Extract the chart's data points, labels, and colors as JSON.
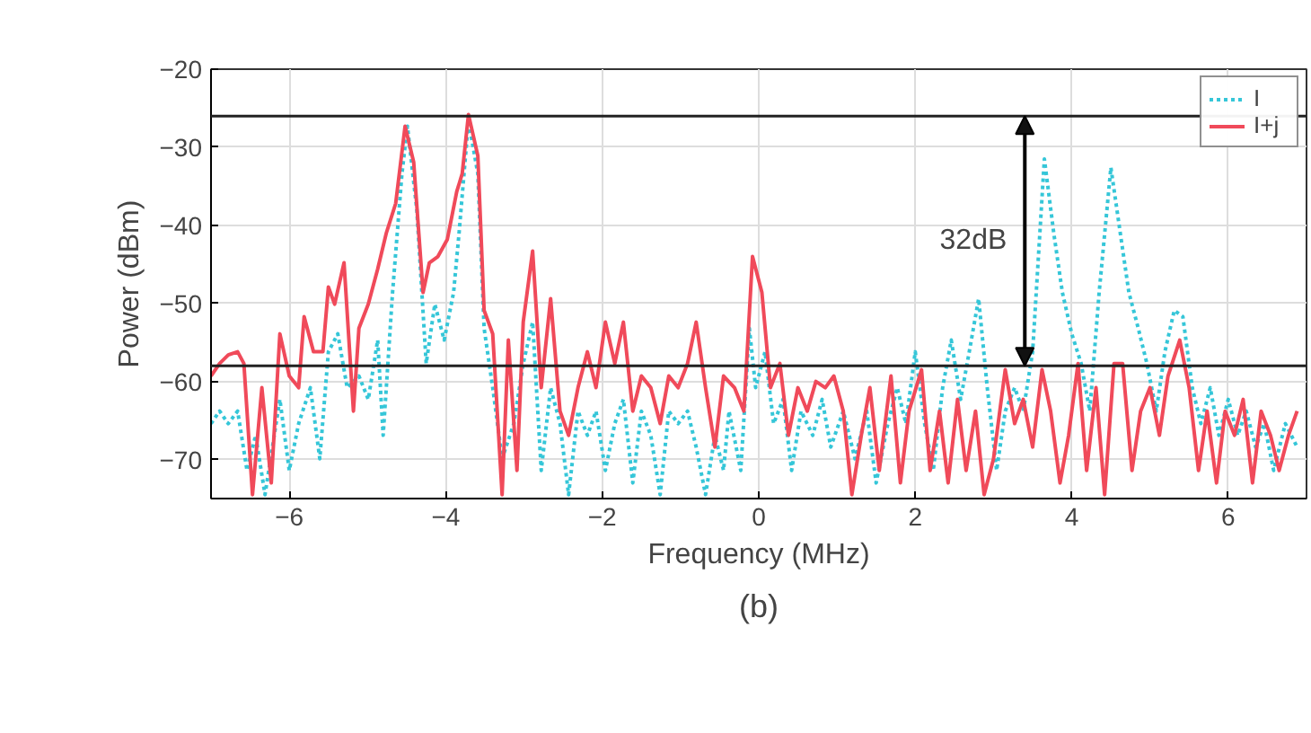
{
  "chart_data": {
    "type": "line",
    "xlabel": "Frequency (MHz)",
    "ylabel": "Power (dBm)",
    "xlim": [
      -7,
      7
    ],
    "ylim": [
      -75,
      -20
    ],
    "xticks": [
      -6,
      -4,
      -2,
      0,
      2,
      4,
      6
    ],
    "yticks": [
      -70,
      -60,
      -50,
      -40,
      -30,
      -20
    ],
    "grid": true,
    "legend": "top right",
    "marker": "none",
    "annotations": [
      "32dB",
      "(b)"
    ],
    "ref_lines": [
      {
        "axis": "y",
        "value": -26
      },
      {
        "axis": "y",
        "value": -58
      }
    ],
    "series": [
      {
        "name": "I",
        "color": "#35c6d8",
        "line_style": "dotted",
        "x": [
          -7.0,
          -6.89,
          -6.78,
          -6.66,
          -6.54,
          -6.43,
          -6.31,
          -6.12,
          -6.0,
          -5.88,
          -5.73,
          -5.61,
          -5.5,
          -5.38,
          -5.26,
          -5.11,
          -4.99,
          -4.87,
          -4.8,
          -4.68,
          -4.56,
          -4.49,
          -4.37,
          -4.25,
          -4.14,
          -4.02,
          -3.9,
          -3.83,
          -3.71,
          -3.59,
          -3.51,
          -3.4,
          -3.28,
          -3.13,
          -3.01,
          -2.89,
          -2.78,
          -2.66,
          -2.54,
          -2.43,
          -2.31,
          -2.19,
          -2.08,
          -1.96,
          -1.84,
          -1.73,
          -1.61,
          -1.5,
          -1.38,
          -1.26,
          -1.15,
          -1.03,
          -0.91,
          -0.8,
          -0.68,
          -0.56,
          -0.45,
          -0.38,
          -0.23,
          -0.12,
          -0.04,
          0.08,
          0.19,
          0.31,
          0.42,
          0.54,
          0.69,
          0.81,
          0.92,
          1.08,
          1.23,
          1.38,
          1.5,
          1.65,
          1.77,
          1.88,
          2.0,
          2.12,
          2.23,
          2.35,
          2.46,
          2.58,
          2.69,
          2.81,
          2.92,
          3.04,
          3.15,
          3.27,
          3.38,
          3.5,
          3.65,
          3.77,
          3.88,
          4.0,
          4.12,
          4.23,
          4.35,
          4.5,
          4.62,
          4.73,
          4.85,
          4.96,
          5.08,
          5.19,
          5.31,
          5.42,
          5.54,
          5.65,
          5.77,
          5.88,
          6.0,
          6.12,
          6.23,
          6.35,
          6.46,
          6.58,
          6.73,
          6.88
        ],
        "values": [
          -65.4,
          -63.8,
          -65.4,
          -63.8,
          -71.4,
          -66.9,
          -74.5,
          -62.3,
          -71.4,
          -65.4,
          -60.8,
          -69.9,
          -56.2,
          -53.9,
          -60.8,
          -59.3,
          -62.3,
          -54.7,
          -66.9,
          -48.6,
          -33.4,
          -27.3,
          -38,
          -57.7,
          -50.1,
          -54.7,
          -48.6,
          -41,
          -26.6,
          -33.4,
          -53.2,
          -60.8,
          -69.9,
          -65.4,
          -57.7,
          -52.4,
          -71.4,
          -60.8,
          -65.4,
          -74.5,
          -63.8,
          -66.9,
          -63.8,
          -71.4,
          -65.4,
          -62.3,
          -73,
          -63.8,
          -66.9,
          -74.5,
          -63.8,
          -65.4,
          -63.8,
          -68.4,
          -74.5,
          -66.9,
          -71.4,
          -63.8,
          -71.4,
          -53.2,
          -60.8,
          -56.2,
          -65.4,
          -62.3,
          -71.4,
          -63.8,
          -66.9,
          -62.3,
          -68.4,
          -63.8,
          -69.9,
          -63.8,
          -73,
          -65.4,
          -60.8,
          -65.4,
          -56.2,
          -65.4,
          -71.4,
          -60.8,
          -54.7,
          -62.3,
          -56.2,
          -49.4,
          -60.8,
          -71.4,
          -63.8,
          -60.8,
          -63.8,
          -56.2,
          -31.5,
          -41,
          -48.6,
          -53.9,
          -57.7,
          -63.8,
          -48.6,
          -32.6,
          -41,
          -48.6,
          -53.2,
          -57.7,
          -63.8,
          -56.2,
          -50.9,
          -51.7,
          -60.8,
          -65.4,
          -60.8,
          -66.9,
          -62.3,
          -66.9,
          -63.8,
          -68.4,
          -65.4,
          -71.4,
          -65.4,
          -68.4
        ]
      },
      {
        "name": "I+j",
        "color": "#f04a5a",
        "line_style": "solid",
        "x": [
          -7.0,
          -6.89,
          -6.78,
          -6.66,
          -6.58,
          -6.47,
          -6.35,
          -6.23,
          -6.12,
          -6.0,
          -5.88,
          -5.81,
          -5.69,
          -5.57,
          -5.5,
          -5.42,
          -5.3,
          -5.18,
          -5.11,
          -4.99,
          -4.87,
          -4.76,
          -4.64,
          -4.52,
          -4.41,
          -4.29,
          -4.21,
          -4.1,
          -3.98,
          -3.86,
          -3.79,
          -3.71,
          -3.59,
          -3.51,
          -3.4,
          -3.28,
          -3.2,
          -3.09,
          -3.01,
          -2.89,
          -2.78,
          -2.66,
          -2.54,
          -2.43,
          -2.31,
          -2.19,
          -2.08,
          -1.96,
          -1.84,
          -1.73,
          -1.61,
          -1.5,
          -1.38,
          -1.26,
          -1.15,
          -1.03,
          -0.91,
          -0.8,
          -0.68,
          -0.56,
          -0.45,
          -0.31,
          -0.19,
          -0.08,
          0.04,
          0.15,
          0.27,
          0.38,
          0.5,
          0.62,
          0.73,
          0.85,
          0.96,
          1.08,
          1.19,
          1.31,
          1.42,
          1.54,
          1.69,
          1.81,
          1.92,
          2.08,
          2.19,
          2.31,
          2.42,
          2.54,
          2.65,
          2.77,
          2.88,
          3.0,
          3.15,
          3.27,
          3.38,
          3.5,
          3.62,
          3.73,
          3.85,
          3.96,
          4.08,
          4.19,
          4.31,
          4.42,
          4.54,
          4.65,
          4.77,
          4.88,
          5.0,
          5.12,
          5.23,
          5.38,
          5.5,
          5.62,
          5.73,
          5.85,
          5.96,
          6.08,
          6.19,
          6.31,
          6.42,
          6.54,
          6.65,
          6.77,
          6.88
        ],
        "values": [
          -59.3,
          -57.7,
          -56.6,
          -56.2,
          -57.7,
          -74.5,
          -60.8,
          -73,
          -53.9,
          -59.3,
          -60.8,
          -51.7,
          -56.2,
          -56.2,
          -47.9,
          -50.1,
          -44.8,
          -63.8,
          -53.2,
          -50.1,
          -45.6,
          -41,
          -37.2,
          -27.3,
          -31.9,
          -48.6,
          -44.8,
          -44,
          -41.8,
          -35.7,
          -33.4,
          -25.8,
          -31.1,
          -50.9,
          -53.9,
          -74.5,
          -54.7,
          -71.4,
          -52.4,
          -43.3,
          -60.8,
          -49.4,
          -63.8,
          -66.9,
          -60.8,
          -56.2,
          -60.8,
          -52.4,
          -57.7,
          -52.4,
          -63.8,
          -59.3,
          -60.8,
          -65.4,
          -59.3,
          -60.8,
          -57.7,
          -52.4,
          -60.8,
          -68.4,
          -59.3,
          -60.8,
          -63.8,
          -44,
          -48.6,
          -60.8,
          -57.7,
          -66.9,
          -60.8,
          -63.8,
          -60,
          -60.8,
          -59.3,
          -63.8,
          -74.5,
          -66.9,
          -60.8,
          -71.4,
          -59.3,
          -73,
          -63.8,
          -58.5,
          -71.4,
          -63.8,
          -73,
          -62.3,
          -71.4,
          -63.8,
          -74.5,
          -69.9,
          -58.5,
          -65.4,
          -62.3,
          -68.4,
          -58.5,
          -63.8,
          -73,
          -66.9,
          -57.7,
          -71.4,
          -60.8,
          -74.5,
          -57.7,
          -57.7,
          -71.4,
          -63.8,
          -60.8,
          -66.9,
          -59.3,
          -54.7,
          -60.8,
          -71.4,
          -63.8,
          -73,
          -63.8,
          -66.9,
          -62.3,
          -73,
          -63.8,
          -66.9,
          -71.4,
          -66.9,
          -63.8
        ]
      }
    ]
  }
}
